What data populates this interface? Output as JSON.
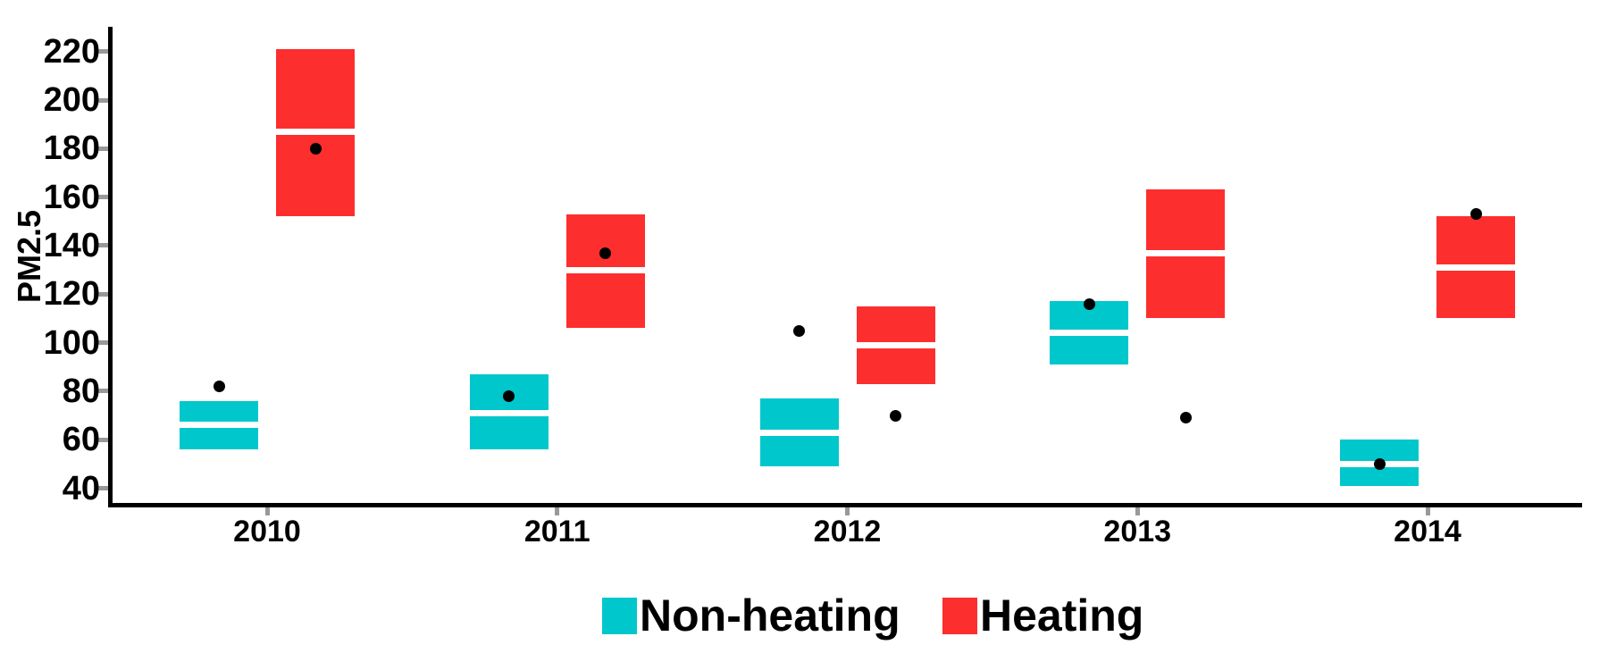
{
  "chart_data": {
    "type": "crossbar-boxplot",
    "title": "",
    "xlabel": "",
    "ylabel": "PM2.5",
    "categories": [
      "2010",
      "2011",
      "2012",
      "2013",
      "2014"
    ],
    "yticks": [
      40,
      60,
      80,
      100,
      120,
      140,
      160,
      180,
      200,
      220
    ],
    "ylim": [
      33,
      230
    ],
    "grid": "off",
    "legend_position": "bottom",
    "axis_color": "#000000",
    "tick_color": "#999999",
    "point_color": "#000000",
    "series": [
      {
        "name": "Non-heating",
        "color": "#00C7CC",
        "boxes": [
          {
            "lower": 56,
            "mid": 66,
            "upper": 76
          },
          {
            "lower": 56,
            "mid": 71,
            "upper": 87
          },
          {
            "lower": 49,
            "mid": 63,
            "upper": 77
          },
          {
            "lower": 91,
            "mid": 104,
            "upper": 117
          },
          {
            "lower": 41,
            "mid": 50,
            "upper": 60
          }
        ],
        "points": [
          82,
          78,
          105,
          116,
          50
        ]
      },
      {
        "name": "Heating",
        "color": "#FD2E2E",
        "boxes": [
          {
            "lower": 152,
            "mid": 187,
            "upper": 221
          },
          {
            "lower": 106,
            "mid": 130,
            "upper": 153
          },
          {
            "lower": 83,
            "mid": 99,
            "upper": 115
          },
          {
            "lower": 110,
            "mid": 137,
            "upper": 163
          },
          {
            "lower": 110,
            "mid": 131,
            "upper": 152
          }
        ],
        "points": [
          180,
          137,
          70,
          69,
          153
        ]
      }
    ]
  },
  "legend": {
    "items": [
      {
        "label": "Non-heating",
        "color": "#00C7CC"
      },
      {
        "label": "Heating",
        "color": "#FD2E2E"
      }
    ]
  }
}
